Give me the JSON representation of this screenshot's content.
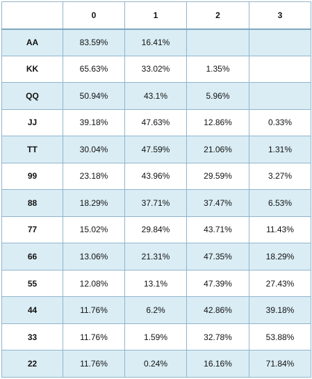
{
  "table": {
    "headers": [
      "",
      "0",
      "1",
      "2",
      "3"
    ],
    "rows": [
      {
        "hand": "AA",
        "values": [
          "83.59%",
          "16.41%",
          "",
          ""
        ]
      },
      {
        "hand": "KK",
        "values": [
          "65.63%",
          "33.02%",
          "1.35%",
          ""
        ]
      },
      {
        "hand": "QQ",
        "values": [
          "50.94%",
          "43.1%",
          "5.96%",
          ""
        ]
      },
      {
        "hand": "JJ",
        "values": [
          "39.18%",
          "47.63%",
          "12.86%",
          "0.33%"
        ]
      },
      {
        "hand": "TT",
        "values": [
          "30.04%",
          "47.59%",
          "21.06%",
          "1.31%"
        ]
      },
      {
        "hand": "99",
        "values": [
          "23.18%",
          "43.96%",
          "29.59%",
          "3.27%"
        ]
      },
      {
        "hand": "88",
        "values": [
          "18.29%",
          "37.71%",
          "37.47%",
          "6.53%"
        ]
      },
      {
        "hand": "77",
        "values": [
          "15.02%",
          "29.84%",
          "43.71%",
          "11.43%"
        ]
      },
      {
        "hand": "66",
        "values": [
          "13.06%",
          "21.31%",
          "47.35%",
          "18.29%"
        ]
      },
      {
        "hand": "55",
        "values": [
          "12.08%",
          "13.1%",
          "47.39%",
          "27.43%"
        ]
      },
      {
        "hand": "44",
        "values": [
          "11.76%",
          "6.2%",
          "42.86%",
          "39.18%"
        ]
      },
      {
        "hand": "33",
        "values": [
          "11.76%",
          "1.59%",
          "32.78%",
          "53.88%"
        ]
      },
      {
        "hand": "22",
        "values": [
          "11.76%",
          "0.24%",
          "16.16%",
          "71.84%"
        ]
      }
    ]
  },
  "colors": {
    "shaded_row": "#daedf4",
    "plain_row": "#ffffff",
    "border": "#8fb4cc"
  }
}
